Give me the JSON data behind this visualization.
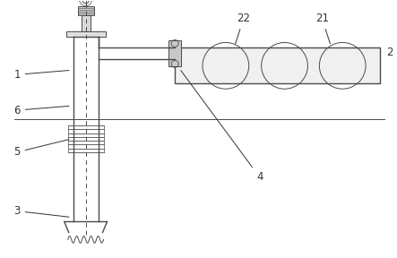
{
  "bg_color": "#ffffff",
  "line_color": "#4a4a4a",
  "label_color": "#333333",
  "fig_width": 4.43,
  "fig_height": 2.88,
  "dpi": 100
}
